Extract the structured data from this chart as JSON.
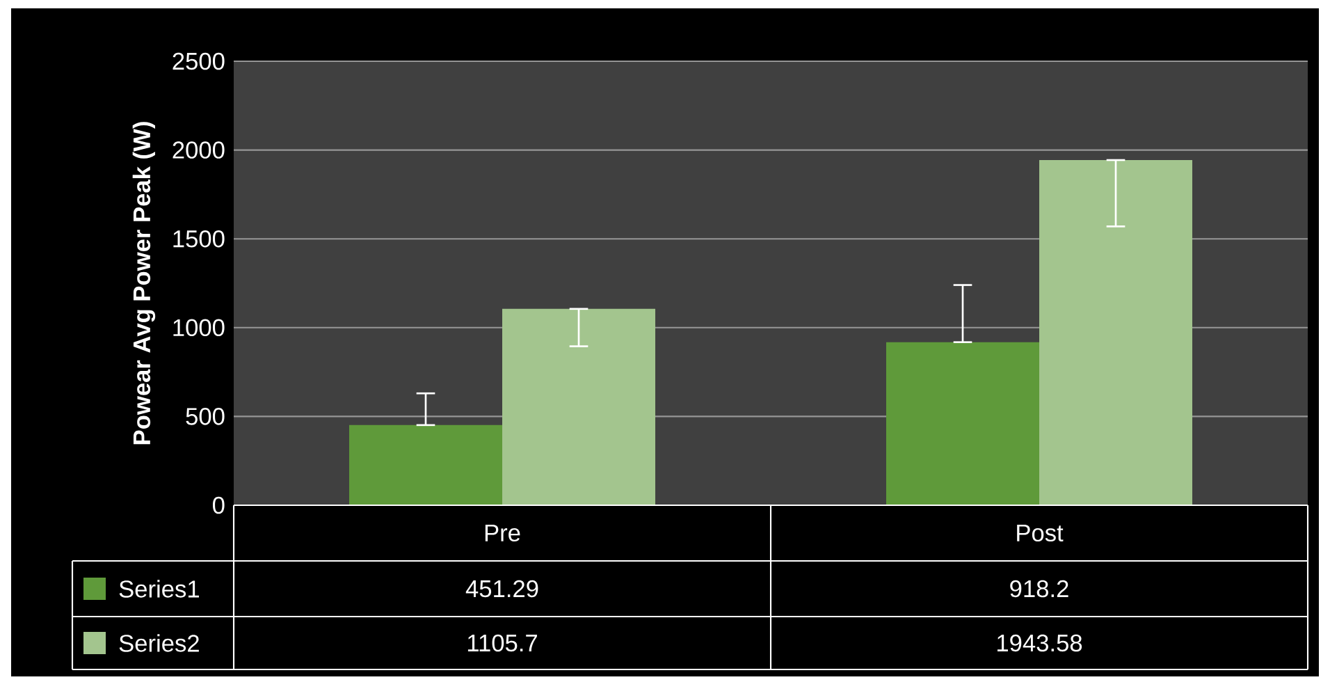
{
  "chart_data": {
    "type": "bar",
    "ylabel": "Powear Avg Power Peak (W)",
    "categories": [
      "Pre",
      "Post"
    ],
    "series": [
      {
        "name": "Series1",
        "color": "#5f9a3a",
        "values": [
          451.29,
          918.2
        ],
        "value_labels": [
          "451.29",
          "918.2"
        ],
        "errors": [
          [
            451.29,
            630
          ],
          [
            918.2,
            1240
          ]
        ]
      },
      {
        "name": "Series2",
        "color": "#a3c58e",
        "values": [
          1105.7,
          1943.58
        ],
        "value_labels": [
          "1105.7",
          "1943.58"
        ],
        "errors": [
          [
            895,
            1105.7
          ],
          [
            1570,
            1943.58
          ]
        ]
      }
    ],
    "ylim": [
      0,
      2500
    ],
    "yticks": [
      0,
      500,
      1000,
      1500,
      2000,
      2500
    ],
    "grid": "y",
    "legend": "bottom"
  }
}
